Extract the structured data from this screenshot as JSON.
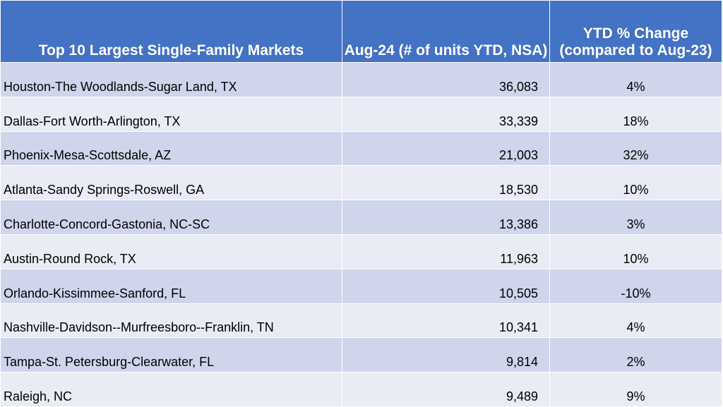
{
  "chart_data": {
    "type": "table",
    "columns": [
      "Top 10 Largest Single-Family Markets",
      "Aug-24 (# of units YTD, NSA)",
      "YTD % Change (compared to Aug-23)"
    ],
    "rows": [
      {
        "market": "Houston-The Woodlands-Sugar Land, TX",
        "units": "36,083",
        "change": "4%"
      },
      {
        "market": "Dallas-Fort Worth-Arlington, TX",
        "units": "33,339",
        "change": "18%"
      },
      {
        "market": "Phoenix-Mesa-Scottsdale, AZ",
        "units": "21,003",
        "change": "32%"
      },
      {
        "market": "Atlanta-Sandy Springs-Roswell, GA",
        "units": "18,530",
        "change": "10%"
      },
      {
        "market": "Charlotte-Concord-Gastonia, NC-SC",
        "units": "13,386",
        "change": "3%"
      },
      {
        "market": "Austin-Round Rock, TX",
        "units": "11,963",
        "change": "10%"
      },
      {
        "market": "Orlando-Kissimmee-Sanford, FL",
        "units": "10,505",
        "change": "-10%"
      },
      {
        "market": "Nashville-Davidson--Murfreesboro--Franklin, TN",
        "units": "10,341",
        "change": "4%"
      },
      {
        "market": "Tampa-St. Petersburg-Clearwater, FL",
        "units": "9,814",
        "change": "2%"
      },
      {
        "market": "Raleigh, NC",
        "units": "9,489",
        "change": "9%"
      }
    ]
  },
  "colors": {
    "header_bg": "#4472c4",
    "row_band_dark": "#cfd5ea",
    "row_band_light": "#e9ebf5"
  }
}
